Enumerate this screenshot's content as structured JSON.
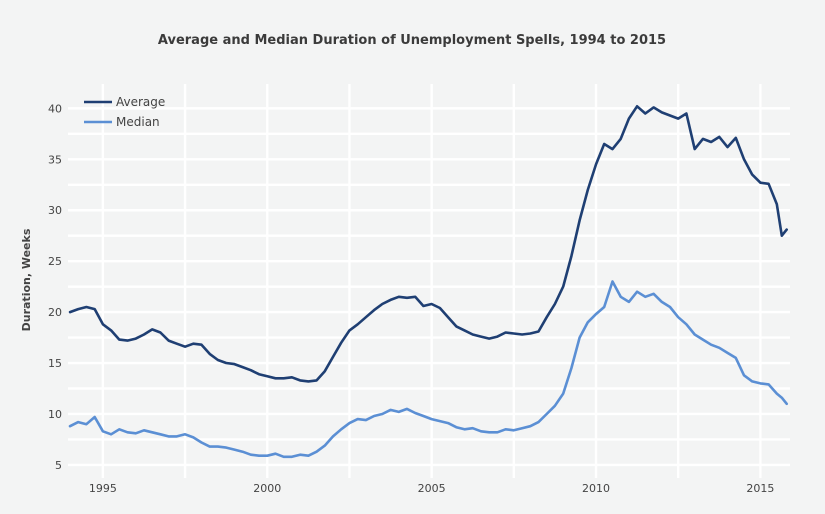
{
  "chart_data": {
    "type": "line",
    "title": "Average and Median Duration of Unemployment Spells, 1994 to 2015",
    "xlabel": "",
    "ylabel": "Duration, Weeks",
    "xlim": [
      1994,
      2015.9
    ],
    "ylim": [
      4.5,
      42
    ],
    "x_ticks": [
      "1995",
      "2000",
      "2005",
      "2010",
      "2015"
    ],
    "y_ticks": [
      "5",
      "10",
      "15",
      "20",
      "25",
      "30",
      "35",
      "40"
    ],
    "grid": true,
    "legend": "top-left",
    "x": [
      1994.0,
      1994.25,
      1994.5,
      1994.75,
      1995.0,
      1995.25,
      1995.5,
      1995.75,
      1996.0,
      1996.25,
      1996.5,
      1996.75,
      1997.0,
      1997.25,
      1997.5,
      1997.75,
      1998.0,
      1998.25,
      1998.5,
      1998.75,
      1999.0,
      1999.25,
      1999.5,
      1999.75,
      2000.0,
      2000.25,
      2000.5,
      2000.75,
      2001.0,
      2001.25,
      2001.5,
      2001.75,
      2002.0,
      2002.25,
      2002.5,
      2002.75,
      2003.0,
      2003.25,
      2003.5,
      2003.75,
      2004.0,
      2004.25,
      2004.5,
      2004.75,
      2005.0,
      2005.25,
      2005.5,
      2005.75,
      2006.0,
      2006.25,
      2006.5,
      2006.75,
      2007.0,
      2007.25,
      2007.5,
      2007.75,
      2008.0,
      2008.25,
      2008.5,
      2008.75,
      2009.0,
      2009.25,
      2009.5,
      2009.75,
      2010.0,
      2010.25,
      2010.5,
      2010.75,
      2011.0,
      2011.25,
      2011.5,
      2011.75,
      2012.0,
      2012.25,
      2012.5,
      2012.75,
      2013.0,
      2013.25,
      2013.5,
      2013.75,
      2014.0,
      2014.25,
      2014.5,
      2014.75,
      2015.0,
      2015.25,
      2015.5,
      2015.65,
      2015.8
    ],
    "series": [
      {
        "name": "Average",
        "color": "#1f3f73",
        "values": [
          20.0,
          20.3,
          20.5,
          20.3,
          18.8,
          18.2,
          17.3,
          17.2,
          17.4,
          17.8,
          18.3,
          18.0,
          17.2,
          16.9,
          16.6,
          16.9,
          16.8,
          15.9,
          15.3,
          15.0,
          14.9,
          14.6,
          14.3,
          13.9,
          13.7,
          13.5,
          13.5,
          13.6,
          13.3,
          13.2,
          13.3,
          14.2,
          15.6,
          17.0,
          18.2,
          18.8,
          19.5,
          20.2,
          20.8,
          21.2,
          21.5,
          21.4,
          21.5,
          20.6,
          20.8,
          20.4,
          19.5,
          18.6,
          18.2,
          17.8,
          17.6,
          17.4,
          17.6,
          18.0,
          17.9,
          17.8,
          17.9,
          18.1,
          19.5,
          20.8,
          22.5,
          25.5,
          29.0,
          32.0,
          34.5,
          36.5,
          36.0,
          37.0,
          39.0,
          40.2,
          39.5,
          40.1,
          39.6,
          39.3,
          39.0,
          39.5,
          36.0,
          37.0,
          36.7,
          37.2,
          36.2,
          37.1,
          35.0,
          33.5,
          32.7,
          32.6,
          30.6,
          27.5,
          28.1
        ]
      },
      {
        "name": "Median",
        "color": "#5b8fd4",
        "values": [
          8.8,
          9.2,
          9.0,
          9.7,
          8.3,
          8.0,
          8.5,
          8.2,
          8.1,
          8.4,
          8.2,
          8.0,
          7.8,
          7.8,
          8.0,
          7.7,
          7.2,
          6.8,
          6.8,
          6.7,
          6.5,
          6.3,
          6.0,
          5.9,
          5.9,
          6.1,
          5.8,
          5.8,
          6.0,
          5.9,
          6.3,
          6.9,
          7.8,
          8.5,
          9.1,
          9.5,
          9.4,
          9.8,
          10.0,
          10.4,
          10.2,
          10.5,
          10.1,
          9.8,
          9.5,
          9.3,
          9.1,
          8.7,
          8.5,
          8.6,
          8.3,
          8.2,
          8.2,
          8.5,
          8.4,
          8.6,
          8.8,
          9.2,
          10.0,
          10.8,
          12.0,
          14.5,
          17.5,
          19.0,
          19.8,
          20.5,
          23.0,
          21.5,
          21.0,
          22.0,
          21.5,
          21.8,
          21.0,
          20.5,
          19.5,
          18.8,
          17.8,
          17.3,
          16.8,
          16.5,
          16.0,
          15.5,
          13.8,
          13.2,
          13.0,
          12.9,
          12.0,
          11.6,
          11.0
        ]
      }
    ]
  }
}
